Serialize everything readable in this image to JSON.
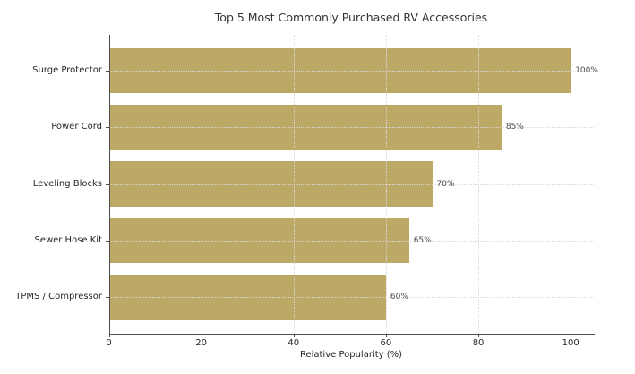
{
  "chart_data": {
    "type": "bar",
    "orientation": "horizontal",
    "title": "Top 5 Most Commonly Purchased RV Accessories",
    "categories": [
      "Surge Protector",
      "Power Cord",
      "Leveling Blocks",
      "Sewer Hose Kit",
      "TPMS / Compressor"
    ],
    "values": [
      100,
      85,
      70,
      65,
      60
    ],
    "value_labels": [
      "100%",
      "85%",
      "70%",
      "65%",
      "60%"
    ],
    "xlabel": "Relative Popularity (%)",
    "ylabel": "",
    "xlim": [
      0,
      105
    ],
    "xticks": [
      0,
      20,
      40,
      60,
      80,
      100
    ],
    "grid": "dotted",
    "legend": "none",
    "colors": {
      "bar": "#bca965",
      "background": "#ffffff",
      "grid": "#d8d8d8",
      "spine": "#4d4d4d",
      "text": "#333333",
      "value_label_text": "#4d4d4d"
    }
  }
}
